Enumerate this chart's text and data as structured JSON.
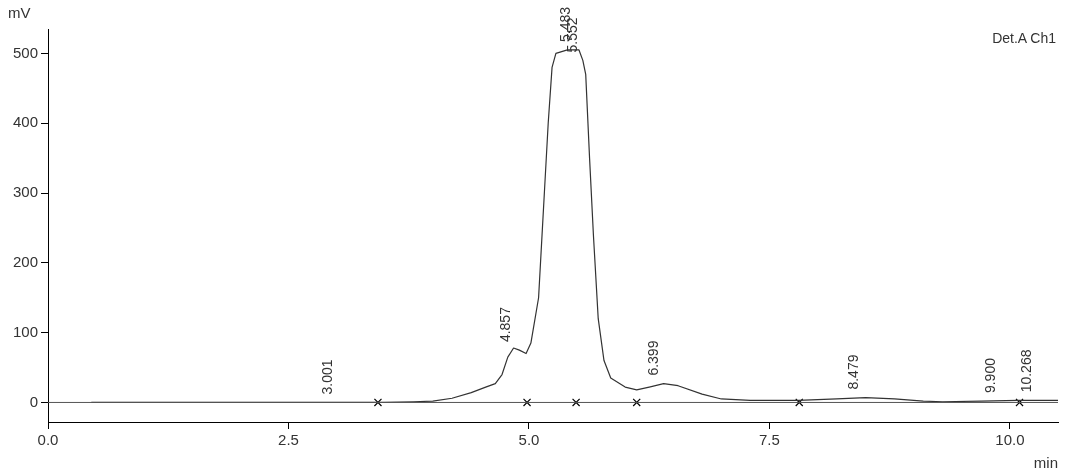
{
  "chart_data": {
    "type": "line",
    "xlabel": "min",
    "ylabel": "mV",
    "xlim": [
      0,
      10.5
    ],
    "ylim": [
      -28,
      535
    ],
    "xticks": [
      {
        "value": 0,
        "label": "0.0"
      },
      {
        "value": 2.5,
        "label": "2.5"
      },
      {
        "value": 5,
        "label": "5.0"
      },
      {
        "value": 7.5,
        "label": "7.5"
      },
      {
        "value": 10,
        "label": "10.0"
      }
    ],
    "yticks": [
      0,
      100,
      200,
      300,
      400,
      500
    ],
    "grid": false,
    "legend": false,
    "marker": "none",
    "line_style": "solid",
    "series": [
      {
        "color": "#333333",
        "x": [
          0.45,
          3.0,
          3.5,
          3.8,
          4.0,
          4.2,
          4.4,
          4.55,
          4.65,
          4.72,
          4.78,
          4.84,
          4.9,
          4.97,
          5.02,
          5.1,
          5.16,
          5.2,
          5.24,
          5.28,
          5.4,
          5.47,
          5.52,
          5.56,
          5.59,
          5.63,
          5.67,
          5.72,
          5.78,
          5.85,
          6.0,
          6.12,
          6.25,
          6.4,
          6.55,
          6.8,
          7.0,
          7.3,
          7.8,
          8.2,
          8.5,
          8.8,
          9.1,
          9.3,
          9.7,
          10.1,
          10.5
        ],
        "values": [
          0,
          0,
          0,
          1,
          2,
          6,
          14,
          22,
          27,
          40,
          65,
          78,
          75,
          70,
          85,
          150,
          300,
          400,
          480,
          500,
          505,
          505,
          505,
          490,
          470,
          350,
          240,
          120,
          60,
          35,
          22,
          18,
          22,
          27,
          24,
          12,
          5,
          3,
          3,
          5,
          7,
          5,
          2,
          1,
          2,
          3,
          3
        ]
      },
      {
        "type": "scatter",
        "marker": "cross",
        "color": "#000000",
        "x": [
          3.43,
          4.98,
          5.49,
          6.12,
          7.81,
          10.1
        ],
        "values": [
          0,
          0,
          0,
          0,
          0,
          0
        ]
      }
    ],
    "ref_lines": [
      {
        "axis": "y",
        "value": 0,
        "color": "#555555"
      }
    ],
    "annotations": [
      {
        "text": "3.001",
        "x": 3.001,
        "y": 0
      },
      {
        "text": "4.857",
        "x": 4.857,
        "y": 75
      },
      {
        "text": "5.483",
        "x": 5.483,
        "y": 505
      },
      {
        "text": "5.552",
        "x": 5.552,
        "y": 490
      },
      {
        "text": "6.399",
        "x": 6.399,
        "y": 27
      },
      {
        "text": "8.479",
        "x": 8.479,
        "y": 7
      },
      {
        "text": "9.900",
        "x": 9.9,
        "y": 2
      },
      {
        "text": "10.268",
        "x": 10.268,
        "y": 3
      },
      "Det.A Ch1"
    ]
  }
}
